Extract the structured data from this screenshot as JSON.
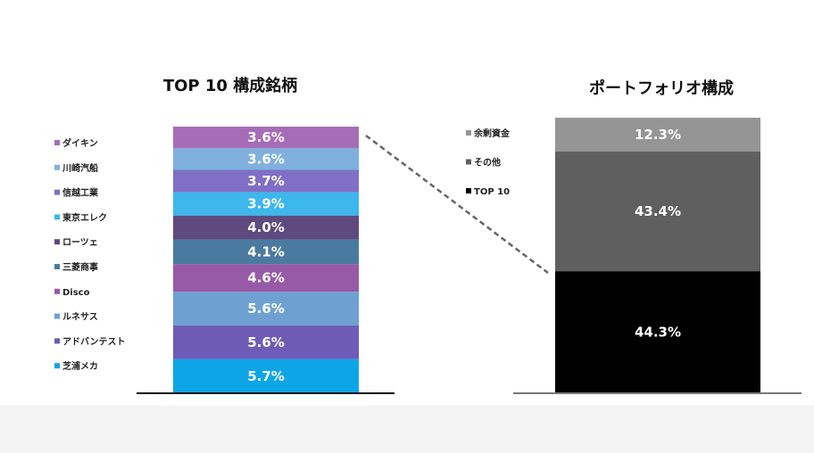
{
  "chart_data": [
    {
      "type": "bar",
      "stacked": true,
      "title": "TOP 10 構成銘柄",
      "series": [
        {
          "name": "芝浦メカ",
          "value": 5.7,
          "label": "5.7%",
          "color": "#0ea5e6"
        },
        {
          "name": "アドバンテスト",
          "value": 5.6,
          "label": "5.6%",
          "color": "#6e5bb5"
        },
        {
          "name": "ルネサス",
          "value": 5.6,
          "label": "5.6%",
          "color": "#6ea1d2"
        },
        {
          "name": "Disco",
          "value": 4.6,
          "label": "4.6%",
          "color": "#975aa6"
        },
        {
          "name": "三菱商事",
          "value": 4.1,
          "label": "4.1%",
          "color": "#4b7aa0"
        },
        {
          "name": "ローツェ",
          "value": 4.0,
          "label": "4.0%",
          "color": "#5e4a7e"
        },
        {
          "name": "東京エレク",
          "value": 3.9,
          "label": "3.9%",
          "color": "#3db7ec"
        },
        {
          "name": "信越工業",
          "value": 3.7,
          "label": "3.7%",
          "color": "#7f6fc6"
        },
        {
          "name": "川崎汽船",
          "value": 3.6,
          "label": "3.6%",
          "color": "#7fb0de"
        },
        {
          "name": "ダイキン",
          "value": 3.6,
          "label": "3.6%",
          "color": "#a76cb8"
        }
      ],
      "legend_order": [
        "ダイキン",
        "川崎汽船",
        "信越工業",
        "東京エレク",
        "ローツェ",
        "三菱商事",
        "Disco",
        "ルネサス",
        "アドバンテスト",
        "芝浦メカ"
      ],
      "legend_position": "left"
    },
    {
      "type": "bar",
      "stacked": true,
      "title": "ポートフォリオ構成",
      "series": [
        {
          "name": "TOP 10",
          "value": 44.3,
          "label": "44.3%",
          "color": "#000000"
        },
        {
          "name": "その他",
          "value": 43.4,
          "label": "43.4%",
          "color": "#5f5f5f"
        },
        {
          "name": "余剰資金",
          "value": 12.3,
          "label": "12.3%",
          "color": "#959595"
        }
      ],
      "legend_order": [
        "余剰資金",
        "その他",
        "TOP 10"
      ],
      "legend_position": "left"
    }
  ]
}
